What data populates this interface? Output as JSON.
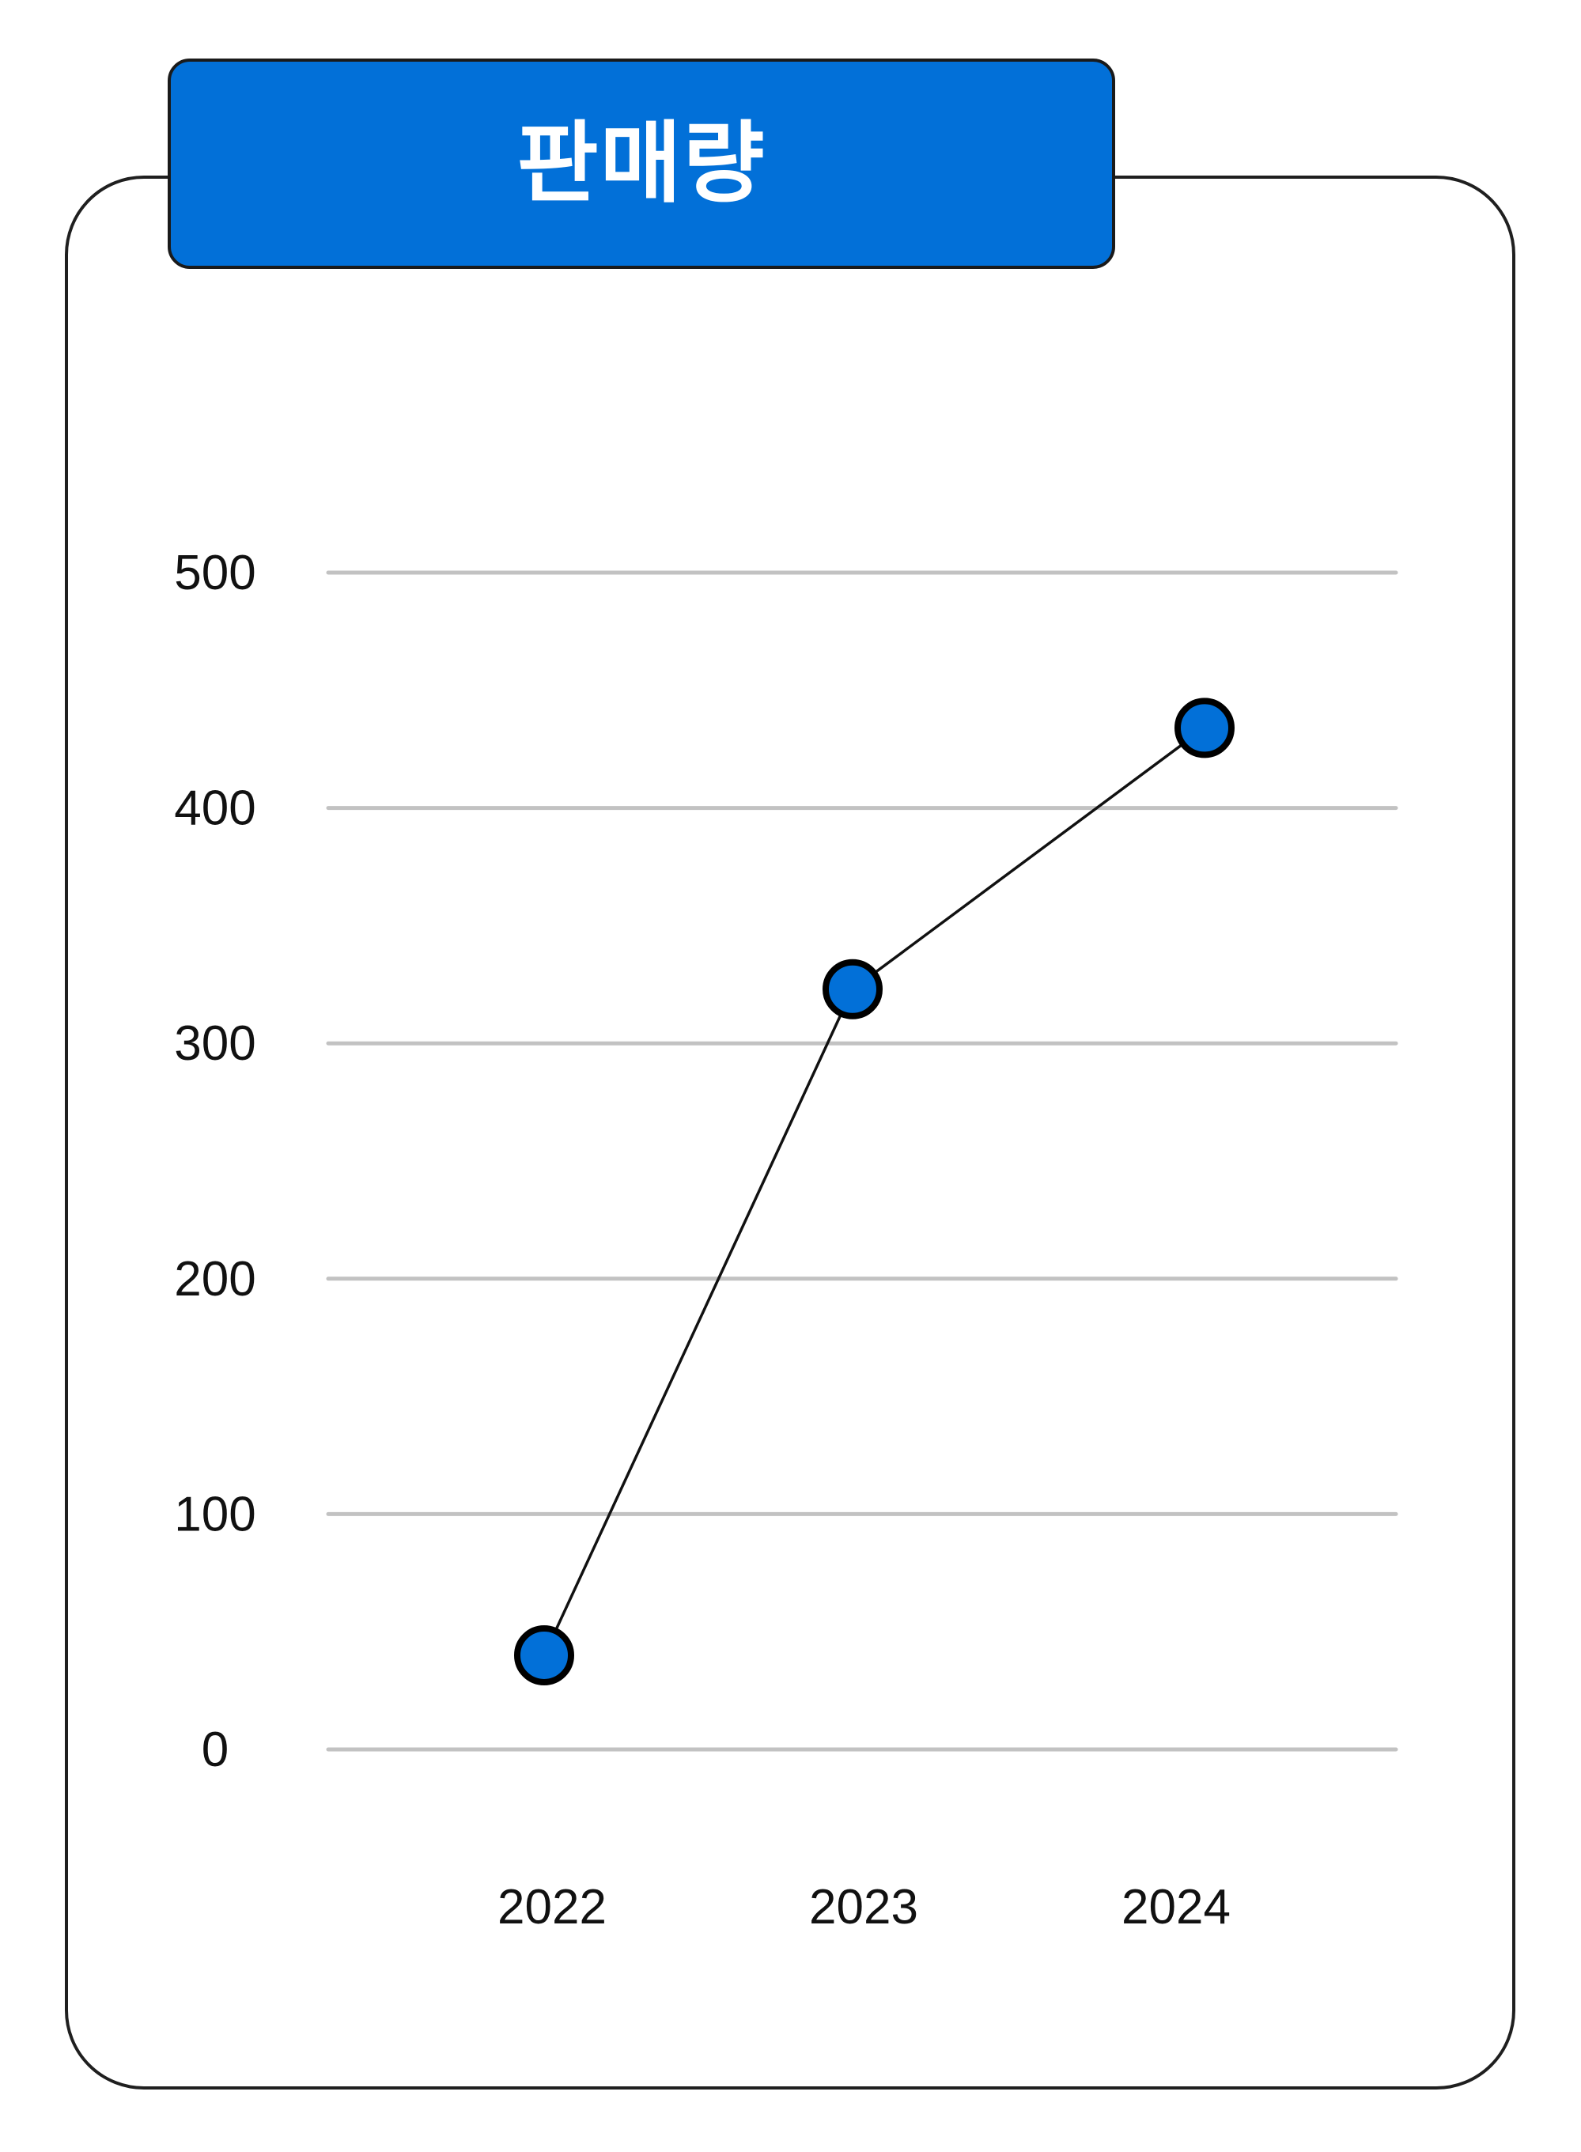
{
  "chart_data": {
    "type": "line",
    "title": "판매량",
    "categories": [
      "2022",
      "2023",
      "2024"
    ],
    "series": [
      {
        "values": [
          40,
          323,
          434
        ]
      }
    ],
    "ylim": [
      0,
      500
    ],
    "yticks": [
      0,
      100,
      200,
      300,
      400,
      500
    ],
    "xlabel": "",
    "ylabel": "",
    "grid": true,
    "legend": "none",
    "colors": {
      "marker_fill": "#0270d8",
      "marker_stroke": "#000000",
      "line": "#111111",
      "grid": "#c2c2c2",
      "title_bg": "#0270d8"
    }
  }
}
